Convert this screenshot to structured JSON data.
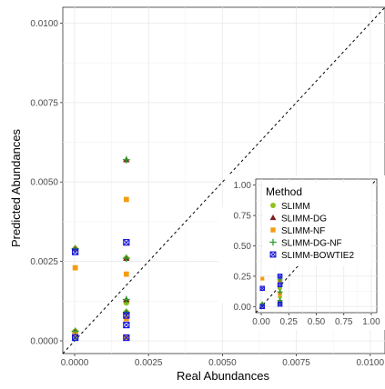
{
  "chart_data": [
    {
      "type": "scatter",
      "xlabel": "Real Abundances",
      "ylabel": "Predicted Abundances",
      "xlim": [
        -0.0004,
        0.0105
      ],
      "ylim": [
        -0.0004,
        0.0105
      ],
      "x_ticks": [
        "0.0000",
        "0.0025",
        "0.0050",
        "0.0075",
        "0.0100"
      ],
      "y_ticks": [
        "0.0000",
        "0.0025",
        "0.0050",
        "0.0075",
        "0.0100"
      ],
      "x_tick_values": [
        0,
        0.0025,
        0.005,
        0.0075,
        0.01
      ],
      "y_tick_values": [
        0,
        0.0025,
        0.005,
        0.0075,
        0.01
      ],
      "grid": true,
      "reference_line": "identity (y = x), dashed",
      "series": [
        {
          "name": "SLIMM",
          "color": "#8fc31f",
          "marker": "circle",
          "points": [
            [
              2e-05,
              0.0029
            ],
            [
              2e-05,
              0.0003
            ],
            [
              2e-05,
              0.0001
            ],
            [
              0.00175,
              0.0026
            ],
            [
              0.00175,
              0.0012
            ],
            [
              0.00175,
              0.0009
            ],
            [
              0.00175,
              0.0001
            ]
          ]
        },
        {
          "name": "SLIMM-DG",
          "color": "#7f1d1d",
          "marker": "triangle",
          "points": [
            [
              2e-05,
              0.0029
            ],
            [
              2e-05,
              0.0003
            ],
            [
              0.00175,
              0.0057
            ],
            [
              0.00175,
              0.0026
            ],
            [
              0.00175,
              0.0013
            ],
            [
              0.00175,
              0.0009
            ]
          ]
        },
        {
          "name": "SLIMM-NF",
          "color": "#f39c12",
          "marker": "square",
          "points": [
            [
              2e-05,
              0.0023
            ],
            [
              2e-05,
              0.0002
            ],
            [
              0.00175,
              0.00445
            ],
            [
              0.00175,
              0.0021
            ],
            [
              0.00175,
              0.0007
            ],
            [
              0.00175,
              0.0001
            ]
          ]
        },
        {
          "name": "SLIMM-DG-NF",
          "color": "#2ca02c",
          "marker": "plus",
          "points": [
            [
              2e-05,
              0.0029
            ],
            [
              2e-05,
              0.0003
            ],
            [
              0.00175,
              0.0057
            ],
            [
              0.00175,
              0.0026
            ],
            [
              0.00175,
              0.0013
            ],
            [
              0.00175,
              0.0009
            ]
          ]
        },
        {
          "name": "SLIMM-BOWTIE2",
          "color": "#1a1adb",
          "marker": "boxx",
          "points": [
            [
              2e-05,
              0.0028
            ],
            [
              2e-05,
              0.0001
            ],
            [
              0.00175,
              0.0031
            ],
            [
              0.00175,
              0.0008
            ],
            [
              0.00175,
              0.0005
            ],
            [
              0.00175,
              0.0001
            ]
          ]
        }
      ]
    },
    {
      "type": "scatter",
      "xlim": [
        -0.05,
        1.05
      ],
      "ylim": [
        -0.05,
        1.05
      ],
      "x_ticks": [
        "0.00",
        "0.25",
        "0.50",
        "0.75",
        "1.00"
      ],
      "y_ticks": [
        "0.00",
        "0.25",
        "0.50",
        "0.75",
        "1.00"
      ],
      "x_tick_values": [
        0,
        0.25,
        0.5,
        0.75,
        1
      ],
      "y_tick_values": [
        0,
        0.25,
        0.5,
        0.75,
        1
      ],
      "grid": true,
      "reference_line": "identity (y = x), dashed",
      "series": [
        {
          "name": "SLIMM",
          "color": "#8fc31f",
          "marker": "circle",
          "points": [
            [
              0.01,
              0.01
            ],
            [
              0.01,
              0.02
            ],
            [
              0.17,
              0.03
            ],
            [
              0.17,
              0.08
            ],
            [
              0.17,
              0.15
            ]
          ]
        },
        {
          "name": "SLIMM-DG",
          "color": "#7f1d1d",
          "marker": "triangle",
          "points": [
            [
              0.01,
              0.02
            ],
            [
              0.17,
              0.05
            ],
            [
              0.17,
              0.12
            ],
            [
              0.17,
              0.22
            ]
          ]
        },
        {
          "name": "SLIMM-NF",
          "color": "#f39c12",
          "marker": "square",
          "points": [
            [
              0.01,
              0.23
            ],
            [
              0.01,
              0.01
            ],
            [
              0.17,
              0.1
            ],
            [
              0.17,
              0.21
            ]
          ]
        },
        {
          "name": "SLIMM-DG-NF",
          "color": "#2ca02c",
          "marker": "plus",
          "points": [
            [
              0.01,
              0.02
            ],
            [
              0.17,
              0.05
            ],
            [
              0.17,
              0.12
            ],
            [
              0.17,
              0.22
            ]
          ]
        },
        {
          "name": "SLIMM-BOWTIE2",
          "color": "#1a1adb",
          "marker": "boxx",
          "points": [
            [
              0.01,
              0.15
            ],
            [
              0.01,
              0.0
            ],
            [
              0.17,
              0.25
            ],
            [
              0.17,
              0.18
            ],
            [
              0.17,
              0.02
            ]
          ]
        }
      ]
    }
  ],
  "legend": {
    "title": "Method",
    "placement": "inside inset, top-left",
    "items": [
      "SLIMM",
      "SLIMM-DG",
      "SLIMM-NF",
      "SLIMM-DG-NF",
      "SLIMM-BOWTIE2"
    ]
  },
  "occluded_fragments": {
    "title_fragment": "M",
    "label_fragments": [
      ",",
      "-",
      "-"
    ],
    "x_tick_fragment": "0.0100"
  }
}
